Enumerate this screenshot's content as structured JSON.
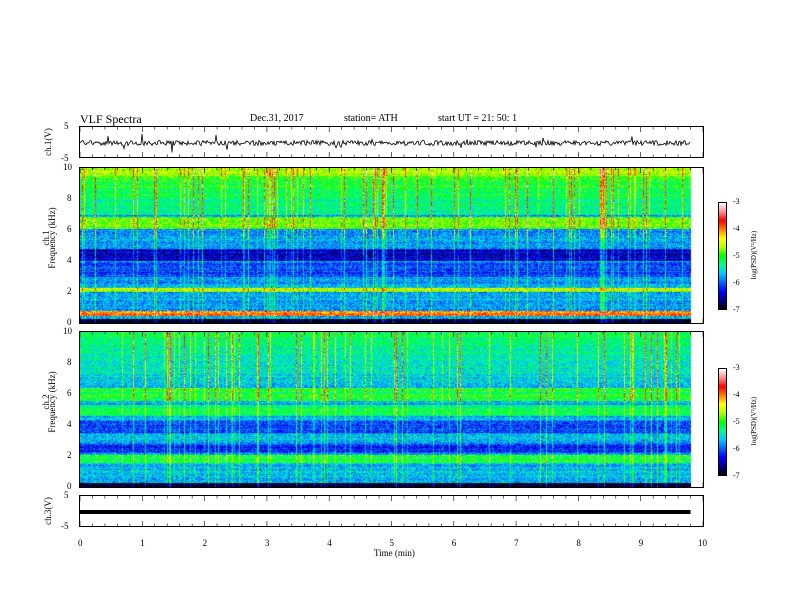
{
  "header": {
    "title": "VLF  Spectra",
    "date": "Dec.31, 2017",
    "station": "station= ATH",
    "start": "start  UT  =    21: 50: 1"
  },
  "colors": {
    "colormap": [
      "#000000",
      "#00008b",
      "#0000ff",
      "#0064ff",
      "#00c8ff",
      "#00ff96",
      "#00ff00",
      "#b4ff00",
      "#ffff00",
      "#ff8000",
      "#ff0000",
      "#ff9090",
      "#ffffff"
    ]
  },
  "chart_data": {
    "type": "heatmap",
    "panels": [
      {
        "id": "ch1-waveform",
        "ylabel": "ch.1(V)",
        "ylim": [
          -5,
          5
        ],
        "yticks": [
          "5",
          "-5"
        ]
      },
      {
        "id": "ch1-spectrogram",
        "ylabel_line1": "ch.1",
        "ylabel_line2": "Frequency  (kHz)",
        "ylim": [
          0,
          10
        ],
        "yticks": [
          "10",
          "8",
          "6",
          "4",
          "2",
          "0"
        ],
        "colorbar": {
          "label": "log(PSD)(V²/Hz)",
          "range": [
            -7,
            -3
          ],
          "ticks": [
            "-3",
            "-4",
            "-5",
            "-6",
            "-7"
          ]
        }
      },
      {
        "id": "ch2-spectrogram",
        "ylabel_line1": "ch.2",
        "ylabel_line2": "Frequency  (kHz)",
        "ylim": [
          0,
          10
        ],
        "yticks": [
          "10",
          "8",
          "6",
          "4",
          "2",
          "0"
        ],
        "colorbar": {
          "label": "log(PSD)(V²/Hz)",
          "range": [
            -7,
            -3
          ],
          "ticks": [
            "-3",
            "-4",
            "-5",
            "-6",
            "-7"
          ]
        }
      },
      {
        "id": "ch3-waveform",
        "ylabel": "ch.3(V)",
        "ylim": [
          -5,
          5
        ],
        "yticks": [
          "5",
          "-5"
        ]
      }
    ],
    "xaxis": {
      "label": "Time  (min)",
      "xlim": [
        0,
        10
      ],
      "ticks": [
        "0",
        "1",
        "2",
        "3",
        "4",
        "5",
        "6",
        "7",
        "8",
        "9",
        "10"
      ],
      "data_end": 9.8
    }
  }
}
